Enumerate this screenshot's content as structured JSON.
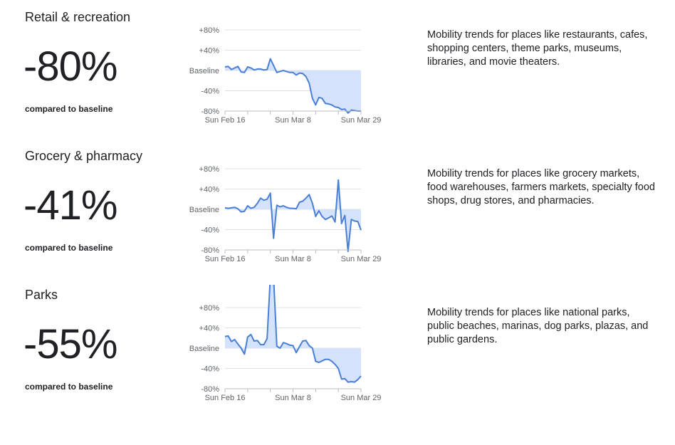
{
  "sections": [
    {
      "title": "Retail & recreation",
      "value": "-80%",
      "compared": "compared to baseline",
      "description": "Mobility trends for places like restaurants, cafes, shopping centers, theme parks, museums, libraries, and movie theaters."
    },
    {
      "title": "Grocery & pharmacy",
      "value": "-41%",
      "compared": "compared to baseline",
      "description": "Mobility trends for places like grocery markets, food warehouses, farmers markets, specialty food shops, drug stores, and pharmacies."
    },
    {
      "title": "Parks",
      "value": "-55%",
      "compared": "compared to baseline",
      "description": "Mobility trends for places like national parks, public beaches, marinas, dog parks, plazas, and public gardens."
    }
  ],
  "colors": {
    "line": "#4a7fd6",
    "fill": "#d4e3fb",
    "grid": "#e0e0e0"
  },
  "chart_data": [
    {
      "type": "area",
      "title": "Retail & recreation",
      "ylim": [
        -80,
        80
      ],
      "y_ticks": [
        "+80%",
        "+40%",
        "Baseline",
        "-40%",
        "-80%"
      ],
      "y_tick_values": [
        80,
        40,
        0,
        -40,
        -80
      ],
      "x_labels": [
        "Sun Feb 16",
        "Sun Mar 8",
        "Sun Mar 29"
      ],
      "x_label_days": [
        0,
        21,
        42
      ],
      "values": [
        7,
        8,
        2,
        5,
        8,
        -3,
        -4,
        7,
        5,
        1,
        3,
        3,
        1,
        2,
        23,
        10,
        -4,
        -2,
        0,
        -2,
        -4,
        -4,
        -9,
        -5,
        -6,
        -12,
        -25,
        -55,
        -68,
        -53,
        -55,
        -65,
        -66,
        -68,
        -72,
        -73,
        -77,
        -76,
        -84,
        -78,
        -79,
        -80,
        -80
      ]
    },
    {
      "type": "area",
      "title": "Grocery & pharmacy",
      "ylim": [
        -80,
        80
      ],
      "y_ticks": [
        "+80%",
        "+40%",
        "Baseline",
        "-40%",
        "-80%"
      ],
      "y_tick_values": [
        80,
        40,
        0,
        -40,
        -80
      ],
      "x_labels": [
        "Sun Feb 16",
        "Sun Mar 8",
        "Sun Mar 29"
      ],
      "x_label_days": [
        0,
        21,
        42
      ],
      "values": [
        3,
        2,
        3,
        4,
        1,
        -5,
        -4,
        7,
        2,
        4,
        12,
        22,
        18,
        20,
        32,
        -57,
        8,
        5,
        7,
        4,
        2,
        2,
        1,
        14,
        16,
        22,
        29,
        12,
        -14,
        -3,
        -14,
        -20,
        -17,
        -13,
        -25,
        58,
        -28,
        -12,
        -83,
        -20,
        -23,
        -24,
        -41
      ]
    },
    {
      "type": "area",
      "title": "Parks",
      "ylim": [
        -80,
        125
      ],
      "y_ticks": [
        "+80%",
        "+40%",
        "Baseline",
        "-40%",
        "-80%"
      ],
      "y_tick_values": [
        80,
        40,
        0,
        -40,
        -80
      ],
      "x_labels": [
        "Sun Feb 16",
        "Sun Mar 8",
        "Sun Mar 29"
      ],
      "x_label_days": [
        0,
        21,
        42
      ],
      "values": [
        23,
        24,
        13,
        17,
        8,
        0,
        -12,
        22,
        27,
        14,
        15,
        7,
        7,
        19,
        140,
        140,
        4,
        0,
        11,
        9,
        6,
        5,
        -9,
        3,
        14,
        15,
        5,
        0,
        -26,
        -28,
        -25,
        -22,
        -22,
        -26,
        -32,
        -40,
        -61,
        -60,
        -67,
        -66,
        -67,
        -62,
        -55
      ]
    }
  ]
}
